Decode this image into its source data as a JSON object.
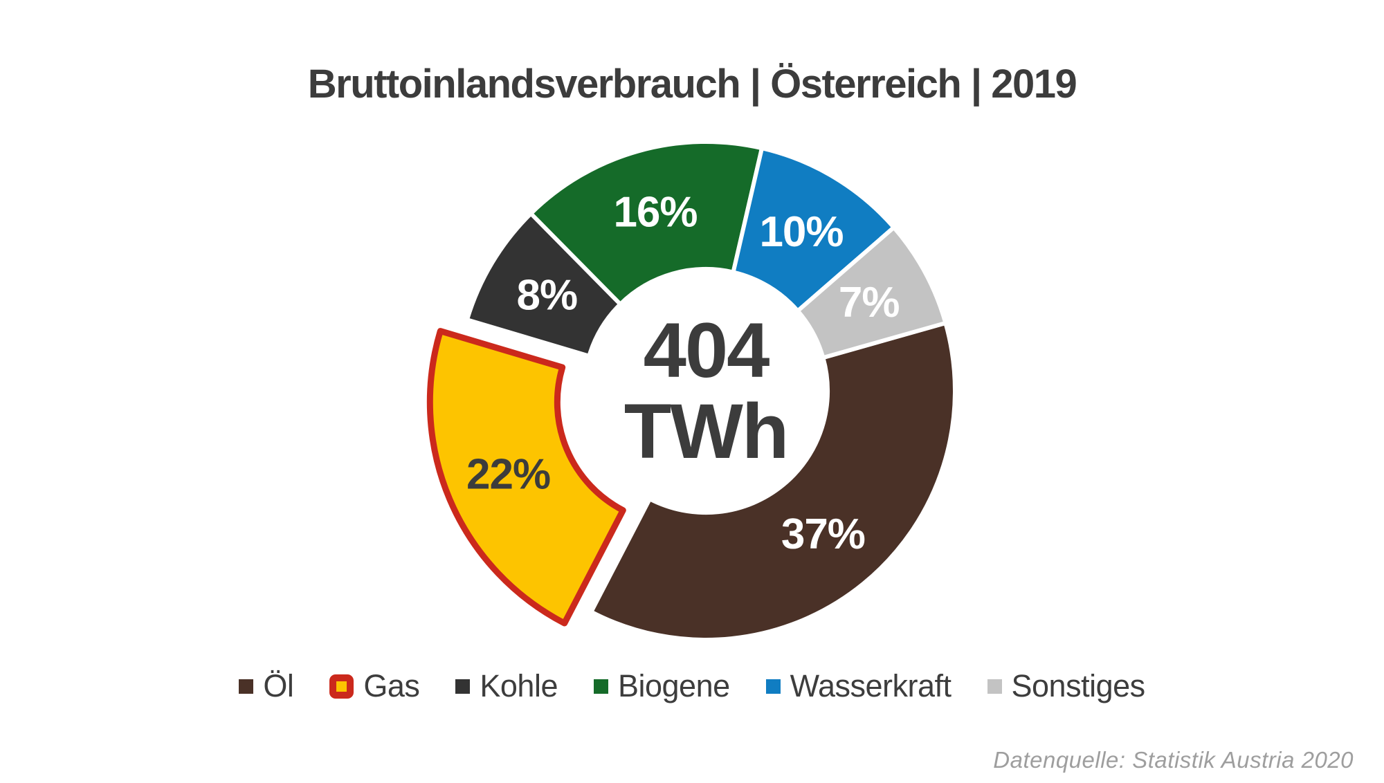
{
  "chart_data": {
    "type": "pie",
    "title": "Bruttoinlandsverbrauch | Österreich | 2019",
    "center_label": {
      "value": "404",
      "unit": "TWh"
    },
    "series": [
      {
        "key": "oel",
        "label": "Öl",
        "percent": 37,
        "display": "37%",
        "color": "#4a3127",
        "label_color": "#ffffff"
      },
      {
        "key": "gas",
        "label": "Gas",
        "percent": 22,
        "display": "22%",
        "color": "#fdc400",
        "label_color": "#3c3c3c",
        "exploded": true,
        "border_color": "#cb291c"
      },
      {
        "key": "kohle",
        "label": "Kohle",
        "percent": 8,
        "display": "8%",
        "color": "#333333",
        "label_color": "#ffffff"
      },
      {
        "key": "biogene",
        "label": "Biogene",
        "percent": 16,
        "display": "16%",
        "color": "#156b29",
        "label_color": "#ffffff"
      },
      {
        "key": "wasserkraft",
        "label": "Wasserkraft",
        "percent": 10,
        "display": "10%",
        "color": "#107dc2",
        "label_color": "#ffffff"
      },
      {
        "key": "sonstiges",
        "label": "Sonstiges",
        "percent": 7,
        "display": "7%",
        "color": "#c3c3c3",
        "label_color": "#ffffff"
      }
    ],
    "layout": {
      "donut": true,
      "start_angle_deg": 74.2,
      "direction": "clockwise",
      "legend_position": "bottom",
      "grid": false
    },
    "source": "Datenquelle: Statistik Austria 2020"
  },
  "colors": {
    "title_text": "#3c3c3c",
    "legend_text": "#3d3d3d",
    "source_text": "#9e9e9e",
    "background": "#ffffff",
    "gas_highlight_border": "#cb291c"
  }
}
